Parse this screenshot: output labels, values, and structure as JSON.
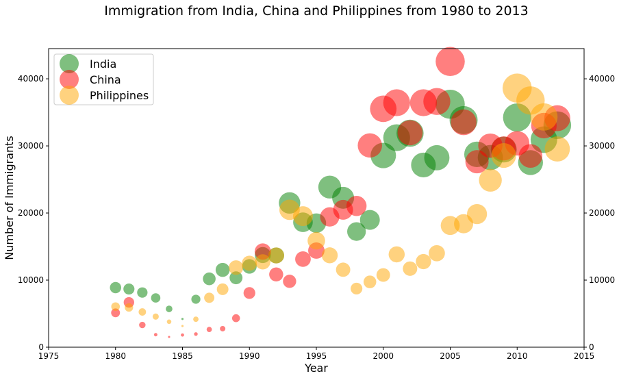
{
  "chart_data": {
    "type": "scatter",
    "title": "Immigration from India, China and Philippines from 1980 to 2013",
    "xlabel": "Year",
    "ylabel": "Number of Immigrants",
    "xlim": [
      1975,
      2015
    ],
    "ylim": [
      0,
      44500
    ],
    "xticks": [
      1975,
      1980,
      1985,
      1990,
      1995,
      2000,
      2005,
      2010,
      2015
    ],
    "yticks": [
      0,
      10000,
      20000,
      30000,
      40000
    ],
    "grid": false,
    "legend_position": "top-left",
    "marker_size_encoding": "normalized immigrant count (bubble area)",
    "series": [
      {
        "name": "India",
        "color": "#008000",
        "x": [
          1980,
          1981,
          1982,
          1983,
          1984,
          1985,
          1986,
          1987,
          1988,
          1989,
          1990,
          1991,
          1992,
          1993,
          1994,
          1995,
          1996,
          1997,
          1998,
          1999,
          2000,
          2001,
          2002,
          2003,
          2004,
          2005,
          2006,
          2007,
          2008,
          2009,
          2010,
          2011,
          2012,
          2013
        ],
        "y": [
          8880,
          8670,
          8147,
          7338,
          5704,
          4211,
          7150,
          10189,
          11522,
          10343,
          12041,
          13734,
          13673,
          21496,
          18620,
          18489,
          23859,
          22268,
          17241,
          18974,
          28572,
          31223,
          31889,
          27155,
          28235,
          36210,
          33848,
          28742,
          28261,
          29456,
          34235,
          27509,
          30933,
          33087
        ]
      },
      {
        "name": "China",
        "color": "#ff0000",
        "x": [
          1980,
          1981,
          1982,
          1983,
          1984,
          1985,
          1986,
          1987,
          1988,
          1989,
          1990,
          1991,
          1992,
          1993,
          1994,
          1995,
          1996,
          1997,
          1998,
          1999,
          2000,
          2001,
          2002,
          2003,
          2004,
          2005,
          2006,
          2007,
          2008,
          2009,
          2010,
          2011,
          2012,
          2013
        ],
        "y": [
          5123,
          6682,
          3308,
          1863,
          1527,
          1816,
          1960,
          2643,
          2758,
          4323,
          8076,
          14255,
          10846,
          9817,
          13128,
          14398,
          19415,
          20475,
          21049,
          30069,
          35529,
          36434,
          31961,
          36439,
          36619,
          42584,
          33518,
          27642,
          30037,
          29622,
          30391,
          28502,
          33024,
          34129
        ]
      },
      {
        "name": "Philippines",
        "color": "#ffa500",
        "x": [
          1980,
          1981,
          1982,
          1983,
          1984,
          1985,
          1986,
          1987,
          1988,
          1989,
          1990,
          1991,
          1992,
          1993,
          1994,
          1995,
          1996,
          1997,
          1998,
          1999,
          2000,
          2001,
          2002,
          2003,
          2004,
          2005,
          2006,
          2007,
          2008,
          2009,
          2010,
          2011,
          2012,
          2013
        ],
        "y": [
          6051,
          5921,
          5249,
          4562,
          3801,
          3150,
          4166,
          7360,
          8639,
          11865,
          12509,
          12718,
          13670,
          20479,
          19532,
          15864,
          13692,
          11549,
          8735,
          9734,
          10763,
          13836,
          11707,
          12758,
          14004,
          18139,
          18400,
          19837,
          24887,
          28573,
          38617,
          36765,
          34315,
          29544
        ]
      }
    ]
  }
}
